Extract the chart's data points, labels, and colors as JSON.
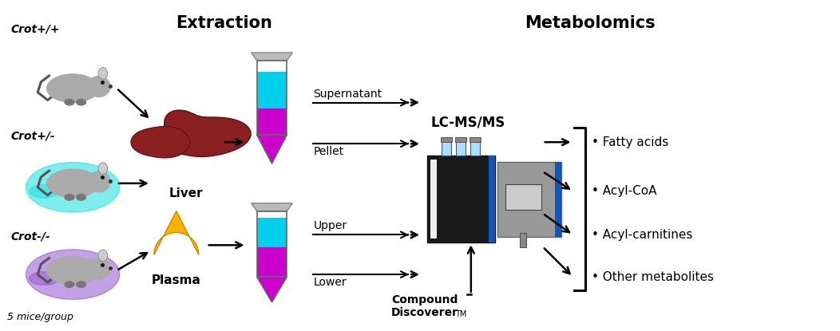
{
  "background_color": "#ffffff",
  "fig_width": 10.52,
  "fig_height": 4.15,
  "extraction_title": "Extraction",
  "metabolomics_title": "Metabolomics",
  "mouse_labels": [
    "Crot+/+",
    "Crot+/-",
    "Crot-/-"
  ],
  "mouse_footnote": "5 mice/group",
  "tissue_labels": [
    "Liver",
    "Plasma"
  ],
  "tube_labels_liver": [
    "Supernatant",
    "Pellet"
  ],
  "tube_labels_plasma": [
    "Upper",
    "Lower"
  ],
  "instrument_label": "LC-MS/MS",
  "compound_label": "Compound\nDiscoverer",
  "compound_tm": "TM",
  "output_items": [
    "• Fatty acids",
    "• Acyl-CoA",
    "• Acyl-carnitines",
    "• Other metabolites"
  ],
  "color_cyan": "#00cfee",
  "color_magenta": "#cc00cc",
  "color_liver": "#8B2020",
  "color_plasma_drop": "#FFB300",
  "color_arrow": "#000000"
}
